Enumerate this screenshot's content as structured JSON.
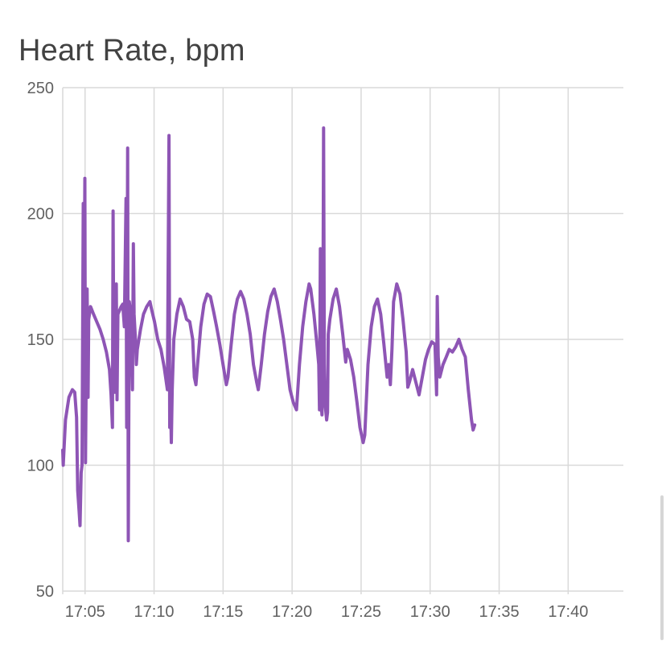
{
  "title": "Heart Rate, bpm",
  "colors": {
    "line": "#8e55b5",
    "grid": "#d9d9d9",
    "text": "#616161"
  },
  "chart_data": {
    "type": "line",
    "title": "Heart Rate, bpm",
    "xlabel": "",
    "ylabel": "",
    "ylim": [
      50,
      250
    ],
    "xlim": [
      "17:03:23",
      "17:44:00"
    ],
    "y_ticks": [
      "250",
      "200",
      "150",
      "100",
      "50"
    ],
    "x_ticks": [
      "17:05",
      "17:10",
      "17:15",
      "17:20",
      "17:25",
      "17:30",
      "17:35",
      "17:40"
    ],
    "grid": true,
    "legend": "none",
    "series": [
      {
        "points": [
          [
            "17:03:23",
            106
          ],
          [
            "17:03:25",
            100
          ],
          [
            "17:03:35",
            118
          ],
          [
            "17:03:50",
            127
          ],
          [
            "17:04:05",
            130
          ],
          [
            "17:04:15",
            129
          ],
          [
            "17:04:23",
            119
          ],
          [
            "17:04:28",
            90
          ],
          [
            "17:04:34",
            82
          ],
          [
            "17:04:38",
            76
          ],
          [
            "17:04:43",
            97
          ],
          [
            "17:04:47",
            100
          ],
          [
            "17:04:52",
            204
          ],
          [
            "17:04:56",
            160
          ],
          [
            "17:04:59",
            214
          ],
          [
            "17:05:02",
            101
          ],
          [
            "17:05:06",
            150
          ],
          [
            "17:05:09",
            170
          ],
          [
            "17:05:13",
            127
          ],
          [
            "17:05:16",
            158
          ],
          [
            "17:05:24",
            163
          ],
          [
            "17:05:37",
            160
          ],
          [
            "17:05:51",
            157
          ],
          [
            "17:06:05",
            154
          ],
          [
            "17:06:19",
            150
          ],
          [
            "17:06:33",
            145
          ],
          [
            "17:06:46",
            138
          ],
          [
            "17:06:53",
            128
          ],
          [
            "17:06:59",
            115
          ],
          [
            "17:07:02",
            201
          ],
          [
            "17:07:05",
            140
          ],
          [
            "17:07:09",
            129
          ],
          [
            "17:07:16",
            172
          ],
          [
            "17:07:19",
            126
          ],
          [
            "17:07:23",
            160
          ],
          [
            "17:07:37",
            163
          ],
          [
            "17:07:44",
            164
          ],
          [
            "17:07:51",
            155
          ],
          [
            "17:07:58",
            206
          ],
          [
            "17:08:01",
            115
          ],
          [
            "17:08:05",
            226
          ],
          [
            "17:08:08",
            70
          ],
          [
            "17:08:12",
            165
          ],
          [
            "17:08:19",
            160
          ],
          [
            "17:08:26",
            130
          ],
          [
            "17:08:30",
            188
          ],
          [
            "17:08:33",
            160
          ],
          [
            "17:08:40",
            148
          ],
          [
            "17:08:43",
            140
          ],
          [
            "17:08:47",
            146
          ],
          [
            "17:09:01",
            154
          ],
          [
            "17:09:14",
            160
          ],
          [
            "17:09:28",
            163
          ],
          [
            "17:09:42",
            165
          ],
          [
            "17:09:49",
            162
          ],
          [
            "17:10:02",
            157
          ],
          [
            "17:10:16",
            150
          ],
          [
            "17:10:30",
            146
          ],
          [
            "17:10:44",
            139
          ],
          [
            "17:10:58",
            130
          ],
          [
            "17:11:05",
            231
          ],
          [
            "17:11:08",
            115
          ],
          [
            "17:11:12",
            125
          ],
          [
            "17:11:15",
            109
          ],
          [
            "17:11:19",
            130
          ],
          [
            "17:11:26",
            150
          ],
          [
            "17:11:39",
            160
          ],
          [
            "17:11:53",
            166
          ],
          [
            "17:12:07",
            163
          ],
          [
            "17:12:21",
            158
          ],
          [
            "17:12:35",
            157
          ],
          [
            "17:12:48",
            150
          ],
          [
            "17:12:55",
            135
          ],
          [
            "17:13:02",
            132
          ],
          [
            "17:13:09",
            140
          ],
          [
            "17:13:23",
            155
          ],
          [
            "17:13:37",
            164
          ],
          [
            "17:13:51",
            168
          ],
          [
            "17:14:05",
            167
          ],
          [
            "17:14:19",
            161
          ],
          [
            "17:14:32",
            155
          ],
          [
            "17:14:46",
            148
          ],
          [
            "17:15:00",
            140
          ],
          [
            "17:15:14",
            132
          ],
          [
            "17:15:21",
            135
          ],
          [
            "17:15:35",
            148
          ],
          [
            "17:15:49",
            160
          ],
          [
            "17:16:02",
            166
          ],
          [
            "17:16:16",
            169
          ],
          [
            "17:16:30",
            166
          ],
          [
            "17:16:44",
            160
          ],
          [
            "17:16:58",
            152
          ],
          [
            "17:17:12",
            140
          ],
          [
            "17:17:26",
            133
          ],
          [
            "17:17:33",
            130
          ],
          [
            "17:17:46",
            140
          ],
          [
            "17:18:00",
            152
          ],
          [
            "17:18:14",
            161
          ],
          [
            "17:18:28",
            167
          ],
          [
            "17:18:42",
            170
          ],
          [
            "17:18:56",
            165
          ],
          [
            "17:19:09",
            158
          ],
          [
            "17:19:23",
            150
          ],
          [
            "17:19:37",
            140
          ],
          [
            "17:19:51",
            130
          ],
          [
            "17:20:05",
            125
          ],
          [
            "17:20:19",
            122
          ],
          [
            "17:20:32",
            140
          ],
          [
            "17:20:46",
            155
          ],
          [
            "17:21:00",
            165
          ],
          [
            "17:21:14",
            172
          ],
          [
            "17:21:21",
            170
          ],
          [
            "17:21:35",
            160
          ],
          [
            "17:21:49",
            147
          ],
          [
            "17:21:56",
            140
          ],
          [
            "17:21:59",
            122
          ],
          [
            "17:22:03",
            186
          ],
          [
            "17:22:06",
            125
          ],
          [
            "17:22:10",
            120
          ],
          [
            "17:22:13",
            131
          ],
          [
            "17:22:17",
            234
          ],
          [
            "17:22:20",
            140
          ],
          [
            "17:22:23",
            125
          ],
          [
            "17:22:30",
            118
          ],
          [
            "17:22:34",
            121
          ],
          [
            "17:22:37",
            152
          ],
          [
            "17:22:44",
            158
          ],
          [
            "17:22:58",
            166
          ],
          [
            "17:23:12",
            170
          ],
          [
            "17:23:26",
            163
          ],
          [
            "17:23:40",
            152
          ],
          [
            "17:23:53",
            141
          ],
          [
            "17:24:00",
            146
          ],
          [
            "17:24:14",
            142
          ],
          [
            "17:24:28",
            135
          ],
          [
            "17:24:42",
            125
          ],
          [
            "17:24:55",
            115
          ],
          [
            "17:25:09",
            109
          ],
          [
            "17:25:16",
            112
          ],
          [
            "17:25:30",
            140
          ],
          [
            "17:25:44",
            155
          ],
          [
            "17:25:58",
            163
          ],
          [
            "17:26:11",
            166
          ],
          [
            "17:26:25",
            160
          ],
          [
            "17:26:39",
            148
          ],
          [
            "17:26:53",
            135
          ],
          [
            "17:27:00",
            140
          ],
          [
            "17:27:07",
            132
          ],
          [
            "17:27:14",
            146
          ],
          [
            "17:27:21",
            165
          ],
          [
            "17:27:35",
            172
          ],
          [
            "17:27:49",
            168
          ],
          [
            "17:28:02",
            158
          ],
          [
            "17:28:16",
            145
          ],
          [
            "17:28:23",
            131
          ],
          [
            "17:28:30",
            133
          ],
          [
            "17:28:44",
            138
          ],
          [
            "17:28:58",
            133
          ],
          [
            "17:29:12",
            128
          ],
          [
            "17:29:26",
            135
          ],
          [
            "17:29:40",
            142
          ],
          [
            "17:29:53",
            146
          ],
          [
            "17:30:07",
            149
          ],
          [
            "17:30:21",
            148
          ],
          [
            "17:30:28",
            128
          ],
          [
            "17:30:31",
            167
          ],
          [
            "17:30:35",
            143
          ],
          [
            "17:30:42",
            135
          ],
          [
            "17:30:56",
            140
          ],
          [
            "17:31:10",
            143
          ],
          [
            "17:31:23",
            146
          ],
          [
            "17:31:37",
            145
          ],
          [
            "17:31:51",
            147
          ],
          [
            "17:32:05",
            150
          ],
          [
            "17:32:19",
            146
          ],
          [
            "17:32:33",
            143
          ],
          [
            "17:32:46",
            130
          ],
          [
            "17:33:00",
            118
          ],
          [
            "17:33:07",
            114
          ],
          [
            "17:33:14",
            116
          ]
        ]
      }
    ]
  }
}
